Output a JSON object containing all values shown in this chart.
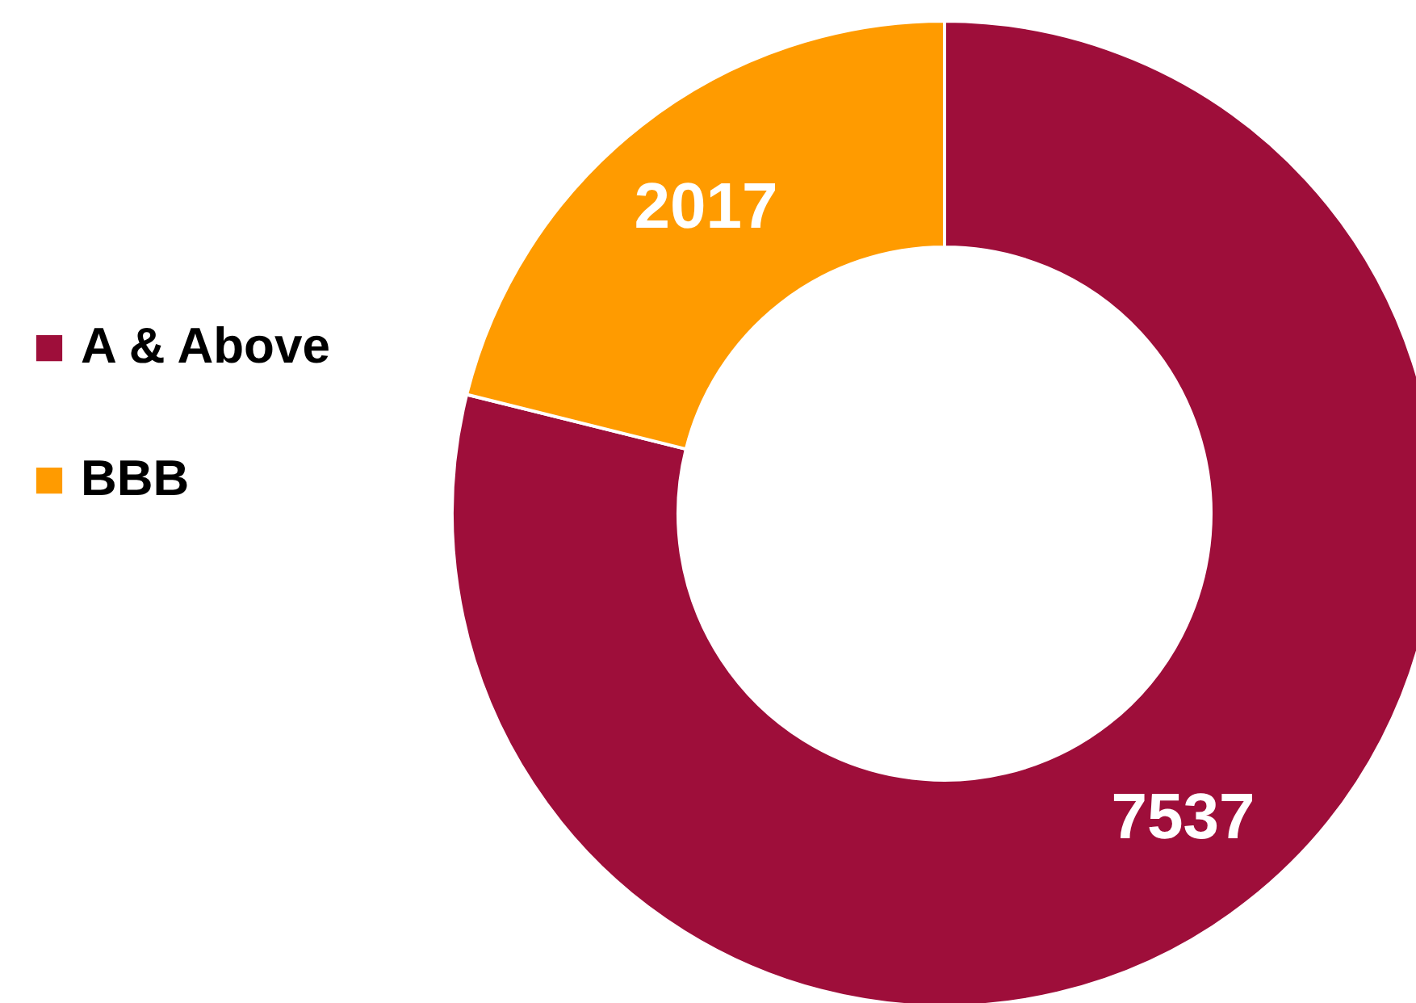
{
  "chart_data": {
    "type": "donut",
    "categories": [
      "A & Above",
      "BBB"
    ],
    "values": [
      7537,
      2017
    ],
    "colors": [
      "#9e0e3a",
      "#ff9b00"
    ],
    "data_labels": true,
    "legend": "left"
  }
}
